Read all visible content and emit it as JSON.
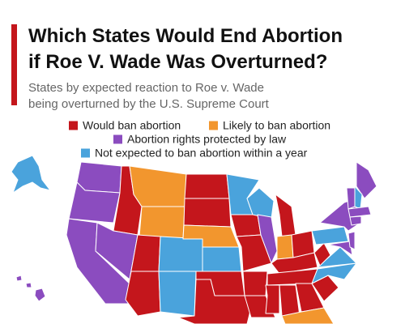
{
  "header": {
    "title_lines": [
      "Which States Would End Abortion",
      "if Roe V. Wade Was Overturned?"
    ],
    "subtitle_lines": [
      "States by expected reaction to Roe v. Wade",
      "being overturned by the U.S. Supreme Court"
    ]
  },
  "legend": [
    {
      "label": "Would ban abortion",
      "color": "#c4161c"
    },
    {
      "label": "Likely to ban abortion",
      "color": "#f2962e"
    },
    {
      "label": "Abortion rights protected by law",
      "color": "#8b4cbf"
    },
    {
      "label": "Not expected to ban abortion within a year",
      "color": "#4aa3dc"
    }
  ]
}
